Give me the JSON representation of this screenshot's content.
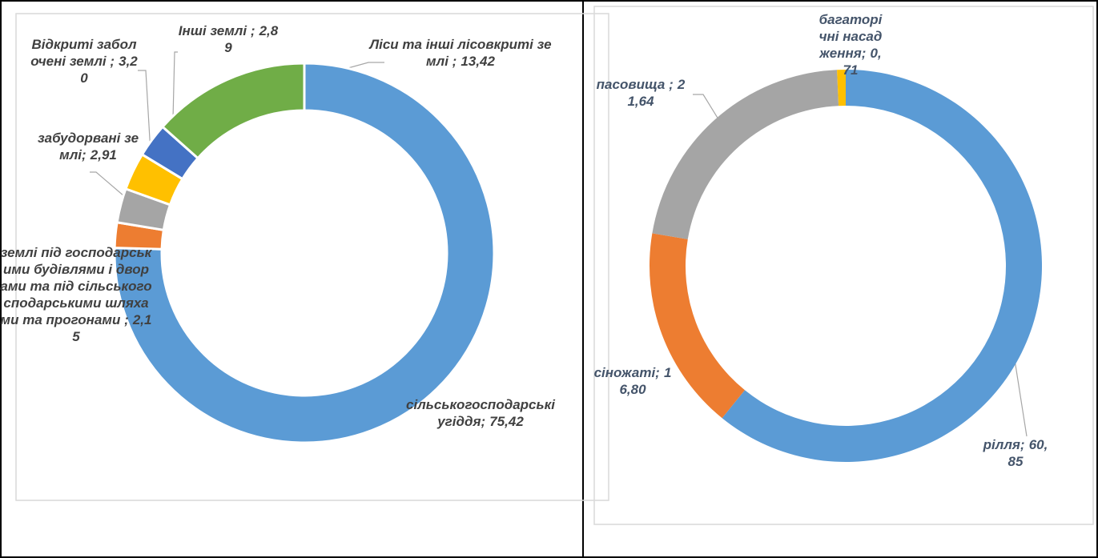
{
  "chart_data": [
    {
      "type": "donut",
      "categories": [
        "сільськогосподарські угіддя;",
        "землі під господарськими будівлями і дворами та під сільськогосподарськими шляхами та прогонами ;",
        "забудорвані землі;",
        "Відкриті заболочені землі ;",
        "Інші землі ;",
        "Ліси та інші лісовкриті землі ;"
      ],
      "values": [
        75.42,
        2.15,
        2.91,
        3.2,
        2.89,
        13.42
      ],
      "value_labels": [
        "75,42",
        "2,15",
        "2,91",
        "3,20",
        "2,89",
        "13,42"
      ],
      "colors": [
        "#5b9bd5",
        "#ed7d31",
        "#a5a5a5",
        "#ffc000",
        "#4472c4",
        "#70ad47"
      ]
    },
    {
      "type": "donut",
      "categories": [
        "рілля;",
        "сіножаті;",
        "пасовища ;",
        "багаторічні насадження;"
      ],
      "values": [
        60.85,
        16.8,
        21.64,
        0.71
      ],
      "value_labels": [
        "60,85",
        "16,80",
        "21,64",
        "0,71"
      ],
      "colors": [
        "#5b9bd5",
        "#ed7d31",
        "#a5a5a5",
        "#ffc000"
      ]
    }
  ]
}
